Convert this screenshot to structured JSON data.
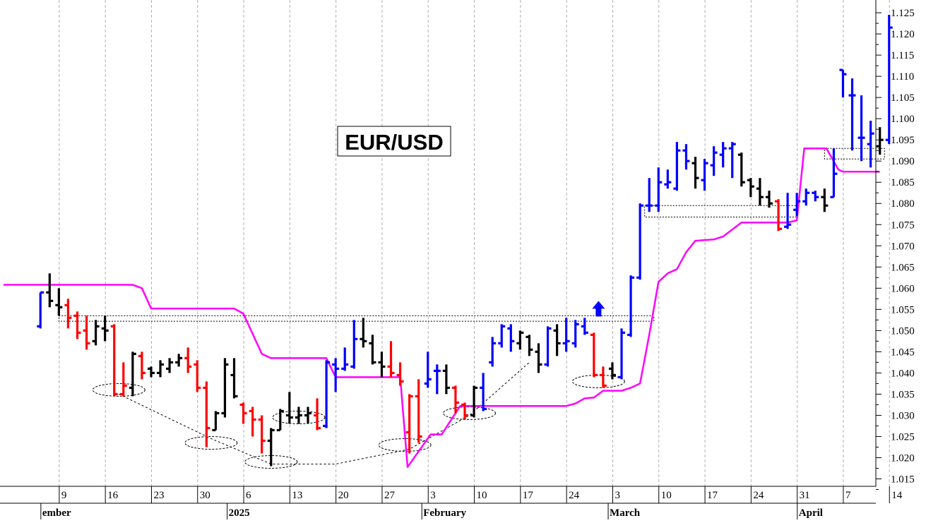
{
  "chart_data": {
    "type": "bar",
    "subtype": "ohlc-price-bars",
    "title": "EUR/USD",
    "colors": {
      "up": "#0000ff",
      "down": "#ff0000",
      "neutral": "#000000",
      "stop_line": "#ff00ff",
      "grid": "#b0b0b0",
      "breakout_arrow": "#0000ff"
    },
    "y_axis": {
      "position": "right",
      "ylim": [
        1.0125,
        1.1275
      ],
      "ticks": [
        "1.015",
        "1.020",
        "1.025",
        "1.030",
        "1.035",
        "1.040",
        "1.045",
        "1.050",
        "1.055",
        "1.060",
        "1.065",
        "1.070",
        "1.075",
        "1.080",
        "1.085",
        "1.090",
        "1.095",
        "1.100",
        "1.105",
        "1.110",
        "1.115",
        "1.120",
        "1.125"
      ]
    },
    "x_axis": {
      "day_labels": [
        {
          "label": "9",
          "x_index": 6
        },
        {
          "label": "16",
          "x_index": 11
        },
        {
          "label": "23",
          "x_index": 16
        },
        {
          "label": "30",
          "x_index": 21
        },
        {
          "label": "6",
          "x_index": 26
        },
        {
          "label": "13",
          "x_index": 31
        },
        {
          "label": "20",
          "x_index": 36
        },
        {
          "label": "27",
          "x_index": 41
        },
        {
          "label": "3",
          "x_index": 46
        },
        {
          "label": "10",
          "x_index": 51
        },
        {
          "label": "17",
          "x_index": 56
        },
        {
          "label": "24",
          "x_index": 61
        },
        {
          "label": "3",
          "x_index": 66
        },
        {
          "label": "10",
          "x_index": 71
        },
        {
          "label": "17",
          "x_index": 76
        },
        {
          "label": "24",
          "x_index": 81
        },
        {
          "label": "31",
          "x_index": 86
        },
        {
          "label": "7",
          "x_index": 91
        },
        {
          "label": "14",
          "x_index": 96
        }
      ],
      "month_labels": [
        {
          "label": "ember",
          "x_index": 4.2
        },
        {
          "label": "2025",
          "x_index": 24.4
        },
        {
          "label": "February",
          "x_index": 45.5
        },
        {
          "label": "March",
          "x_index": 65.7
        },
        {
          "label": "April",
          "x_index": 86.2
        }
      ]
    },
    "bars": [
      {
        "x": 4,
        "o": 1.051,
        "h": 1.059,
        "l": 1.0505,
        "c": 1.059,
        "color": "up"
      },
      {
        "x": 5,
        "o": 1.059,
        "h": 1.0635,
        "l": 1.0555,
        "c": 1.057,
        "color": "neutral"
      },
      {
        "x": 6,
        "o": 1.056,
        "h": 1.06,
        "l": 1.0535,
        "c": 1.0555,
        "color": "neutral"
      },
      {
        "x": 7,
        "o": 1.056,
        "h": 1.0575,
        "l": 1.0505,
        "c": 1.053,
        "color": "down"
      },
      {
        "x": 8,
        "o": 1.0535,
        "h": 1.0545,
        "l": 1.048,
        "c": 1.0495,
        "color": "down"
      },
      {
        "x": 9,
        "o": 1.05,
        "h": 1.0535,
        "l": 1.0455,
        "c": 1.047,
        "color": "down"
      },
      {
        "x": 10,
        "o": 1.0475,
        "h": 1.0525,
        "l": 1.0465,
        "c": 1.051,
        "color": "neutral"
      },
      {
        "x": 11,
        "o": 1.0505,
        "h": 1.0535,
        "l": 1.0475,
        "c": 1.05,
        "color": "neutral"
      },
      {
        "x": 12,
        "o": 1.051,
        "h": 1.0515,
        "l": 1.0345,
        "c": 1.035,
        "color": "down"
      },
      {
        "x": 13,
        "o": 1.035,
        "h": 1.0425,
        "l": 1.0345,
        "c": 1.037,
        "color": "down"
      },
      {
        "x": 14,
        "o": 1.0365,
        "h": 1.045,
        "l": 1.0345,
        "c": 1.0445,
        "color": "neutral"
      },
      {
        "x": 15,
        "o": 1.044,
        "h": 1.045,
        "l": 1.0385,
        "c": 1.04,
        "color": "down"
      },
      {
        "x": 16,
        "o": 1.041,
        "h": 1.0415,
        "l": 1.039,
        "c": 1.04,
        "color": "neutral"
      },
      {
        "x": 17,
        "o": 1.04,
        "h": 1.043,
        "l": 1.039,
        "c": 1.042,
        "color": "neutral"
      },
      {
        "x": 18,
        "o": 1.041,
        "h": 1.0435,
        "l": 1.04,
        "c": 1.0425,
        "color": "neutral"
      },
      {
        "x": 19,
        "o": 1.0425,
        "h": 1.0445,
        "l": 1.0415,
        "c": 1.0435,
        "color": "neutral"
      },
      {
        "x": 20,
        "o": 1.0435,
        "h": 1.046,
        "l": 1.04,
        "c": 1.0415,
        "color": "down"
      },
      {
        "x": 21,
        "o": 1.042,
        "h": 1.043,
        "l": 1.0355,
        "c": 1.0365,
        "color": "down"
      },
      {
        "x": 22,
        "o": 1.0365,
        "h": 1.038,
        "l": 1.0225,
        "c": 1.027,
        "color": "down"
      },
      {
        "x": 23,
        "o": 1.0265,
        "h": 1.031,
        "l": 1.0265,
        "c": 1.0305,
        "color": "neutral"
      },
      {
        "x": 24,
        "o": 1.0305,
        "h": 1.0435,
        "l": 1.0295,
        "c": 1.042,
        "color": "neutral"
      },
      {
        "x": 25,
        "o": 1.0395,
        "h": 1.0435,
        "l": 1.034,
        "c": 1.0345,
        "color": "neutral"
      },
      {
        "x": 26,
        "o": 1.0325,
        "h": 1.033,
        "l": 1.028,
        "c": 1.0305,
        "color": "down"
      },
      {
        "x": 27,
        "o": 1.031,
        "h": 1.032,
        "l": 1.025,
        "c": 1.029,
        "color": "down"
      },
      {
        "x": 28,
        "o": 1.029,
        "h": 1.03,
        "l": 1.021,
        "c": 1.024,
        "color": "down"
      },
      {
        "x": 29,
        "o": 1.024,
        "h": 1.027,
        "l": 1.018,
        "c": 1.0265,
        "color": "neutral"
      },
      {
        "x": 30,
        "o": 1.0265,
        "h": 1.0315,
        "l": 1.0265,
        "c": 1.031,
        "color": "neutral"
      },
      {
        "x": 31,
        "o": 1.03,
        "h": 1.0355,
        "l": 1.028,
        "c": 1.0295,
        "color": "neutral"
      },
      {
        "x": 32,
        "o": 1.0295,
        "h": 1.032,
        "l": 1.028,
        "c": 1.03,
        "color": "neutral"
      },
      {
        "x": 33,
        "o": 1.03,
        "h": 1.032,
        "l": 1.028,
        "c": 1.0305,
        "color": "neutral"
      },
      {
        "x": 34,
        "o": 1.03,
        "h": 1.034,
        "l": 1.0265,
        "c": 1.027,
        "color": "down"
      },
      {
        "x": 35,
        "o": 1.0275,
        "h": 1.043,
        "l": 1.027,
        "c": 1.0425,
        "color": "up"
      },
      {
        "x": 36,
        "o": 1.042,
        "h": 1.0435,
        "l": 1.0355,
        "c": 1.041,
        "color": "up"
      },
      {
        "x": 37,
        "o": 1.041,
        "h": 1.046,
        "l": 1.0405,
        "c": 1.042,
        "color": "up"
      },
      {
        "x": 38,
        "o": 1.0415,
        "h": 1.0525,
        "l": 1.041,
        "c": 1.048,
        "color": "up"
      },
      {
        "x": 39,
        "o": 1.048,
        "h": 1.053,
        "l": 1.046,
        "c": 1.0475,
        "color": "neutral"
      },
      {
        "x": 40,
        "o": 1.047,
        "h": 1.049,
        "l": 1.042,
        "c": 1.0425,
        "color": "neutral"
      },
      {
        "x": 41,
        "o": 1.0425,
        "h": 1.045,
        "l": 1.039,
        "c": 1.0415,
        "color": "neutral"
      },
      {
        "x": 42,
        "o": 1.0415,
        "h": 1.0475,
        "l": 1.039,
        "c": 1.04,
        "color": "down"
      },
      {
        "x": 43,
        "o": 1.0395,
        "h": 1.0425,
        "l": 1.037,
        "c": 1.038,
        "color": "down"
      },
      {
        "x": 44,
        "o": 1.026,
        "h": 1.035,
        "l": 1.021,
        "c": 1.0345,
        "color": "down"
      },
      {
        "x": 45,
        "o": 1.0345,
        "h": 1.0385,
        "l": 1.0235,
        "c": 1.025,
        "color": "down"
      },
      {
        "x": 46,
        "o": 1.0375,
        "h": 1.045,
        "l": 1.0365,
        "c": 1.0385,
        "color": "up"
      },
      {
        "x": 47,
        "o": 1.0405,
        "h": 1.042,
        "l": 1.035,
        "c": 1.0405,
        "color": "up"
      },
      {
        "x": 48,
        "o": 1.0405,
        "h": 1.042,
        "l": 1.035,
        "c": 1.0365,
        "color": "neutral"
      },
      {
        "x": 49,
        "o": 1.0365,
        "h": 1.037,
        "l": 1.0305,
        "c": 1.033,
        "color": "down"
      },
      {
        "x": 50,
        "o": 1.0325,
        "h": 1.033,
        "l": 1.029,
        "c": 1.03,
        "color": "down"
      },
      {
        "x": 51,
        "o": 1.03,
        "h": 1.037,
        "l": 1.0295,
        "c": 1.0365,
        "color": "neutral"
      },
      {
        "x": 52,
        "o": 1.0365,
        "h": 1.04,
        "l": 1.031,
        "c": 1.0315,
        "color": "up"
      },
      {
        "x": 53,
        "o": 1.0425,
        "h": 1.0485,
        "l": 1.0415,
        "c": 1.047,
        "color": "up"
      },
      {
        "x": 54,
        "o": 1.047,
        "h": 1.0515,
        "l": 1.046,
        "c": 1.051,
        "color": "up"
      },
      {
        "x": 55,
        "o": 1.0505,
        "h": 1.0515,
        "l": 1.045,
        "c": 1.0475,
        "color": "up"
      },
      {
        "x": 56,
        "o": 1.047,
        "h": 1.05,
        "l": 1.0455,
        "c": 1.0495,
        "color": "neutral"
      },
      {
        "x": 57,
        "o": 1.0485,
        "h": 1.049,
        "l": 1.044,
        "c": 1.0455,
        "color": "neutral"
      },
      {
        "x": 58,
        "o": 1.045,
        "h": 1.047,
        "l": 1.04,
        "c": 1.042,
        "color": "neutral"
      },
      {
        "x": 59,
        "o": 1.042,
        "h": 1.051,
        "l": 1.0415,
        "c": 1.0505,
        "color": "up"
      },
      {
        "x": 60,
        "o": 1.05,
        "h": 1.0515,
        "l": 1.044,
        "c": 1.047,
        "color": "neutral"
      },
      {
        "x": 61,
        "o": 1.047,
        "h": 1.053,
        "l": 1.045,
        "c": 1.0475,
        "color": "up"
      },
      {
        "x": 62,
        "o": 1.047,
        "h": 1.0525,
        "l": 1.046,
        "c": 1.0515,
        "color": "up"
      },
      {
        "x": 63,
        "o": 1.051,
        "h": 1.053,
        "l": 1.049,
        "c": 1.0495,
        "color": "up"
      },
      {
        "x": 64,
        "o": 1.049,
        "h": 1.0495,
        "l": 1.039,
        "c": 1.0395,
        "color": "down"
      },
      {
        "x": 65,
        "o": 1.0395,
        "h": 1.0415,
        "l": 1.0365,
        "c": 1.037,
        "color": "down"
      },
      {
        "x": 66,
        "o": 1.041,
        "h": 1.0425,
        "l": 1.0385,
        "c": 1.0395,
        "color": "neutral"
      },
      {
        "x": 67,
        "o": 1.039,
        "h": 1.0505,
        "l": 1.0385,
        "c": 1.0495,
        "color": "up"
      },
      {
        "x": 68,
        "o": 1.049,
        "h": 1.063,
        "l": 1.0485,
        "c": 1.0625,
        "color": "up"
      },
      {
        "x": 69,
        "o": 1.0625,
        "h": 1.08,
        "l": 1.062,
        "c": 1.0795,
        "color": "up"
      },
      {
        "x": 70,
        "o": 1.0795,
        "h": 1.086,
        "l": 1.078,
        "c": 1.0795,
        "color": "up"
      },
      {
        "x": 71,
        "o": 1.0795,
        "h": 1.0885,
        "l": 1.078,
        "c": 1.085,
        "color": "up"
      },
      {
        "x": 72,
        "o": 1.0845,
        "h": 1.088,
        "l": 1.0835,
        "c": 1.085,
        "color": "up"
      },
      {
        "x": 73,
        "o": 1.0835,
        "h": 1.0945,
        "l": 1.083,
        "c": 1.0925,
        "color": "up"
      },
      {
        "x": 74,
        "o": 1.0925,
        "h": 1.094,
        "l": 1.088,
        "c": 1.09,
        "color": "up"
      },
      {
        "x": 75,
        "o": 1.0895,
        "h": 1.091,
        "l": 1.0835,
        "c": 1.086,
        "color": "neutral"
      },
      {
        "x": 76,
        "o": 1.0855,
        "h": 1.0905,
        "l": 1.083,
        "c": 1.0895,
        "color": "up"
      },
      {
        "x": 77,
        "o": 1.089,
        "h": 1.0935,
        "l": 1.0865,
        "c": 1.092,
        "color": "up"
      },
      {
        "x": 78,
        "o": 1.0915,
        "h": 1.0945,
        "l": 1.0885,
        "c": 1.093,
        "color": "up"
      },
      {
        "x": 79,
        "o": 1.093,
        "h": 1.0945,
        "l": 1.086,
        "c": 1.094,
        "color": "up"
      },
      {
        "x": 80,
        "o": 1.0915,
        "h": 1.092,
        "l": 1.084,
        "c": 1.085,
        "color": "neutral"
      },
      {
        "x": 81,
        "o": 1.0855,
        "h": 1.086,
        "l": 1.0815,
        "c": 1.084,
        "color": "neutral"
      },
      {
        "x": 82,
        "o": 1.0835,
        "h": 1.086,
        "l": 1.0795,
        "c": 1.0815,
        "color": "neutral"
      },
      {
        "x": 83,
        "o": 1.0815,
        "h": 1.083,
        "l": 1.079,
        "c": 1.08,
        "color": "neutral"
      },
      {
        "x": 84,
        "o": 1.0805,
        "h": 1.081,
        "l": 1.0735,
        "c": 1.074,
        "color": "down"
      },
      {
        "x": 85,
        "o": 1.0745,
        "h": 1.0825,
        "l": 1.074,
        "c": 1.075,
        "color": "up"
      },
      {
        "x": 86,
        "o": 1.0785,
        "h": 1.0825,
        "l": 1.077,
        "c": 1.0805,
        "color": "up"
      },
      {
        "x": 87,
        "o": 1.0805,
        "h": 1.0835,
        "l": 1.0795,
        "c": 1.0825,
        "color": "up"
      },
      {
        "x": 88,
        "o": 1.0825,
        "h": 1.083,
        "l": 1.0805,
        "c": 1.0815,
        "color": "up"
      },
      {
        "x": 89,
        "o": 1.0815,
        "h": 1.0835,
        "l": 1.078,
        "c": 1.0795,
        "color": "neutral"
      },
      {
        "x": 90,
        "o": 1.0815,
        "h": 1.093,
        "l": 1.0815,
        "c": 1.087,
        "color": "up"
      },
      {
        "x": 91,
        "o": 1.1115,
        "h": 1.1115,
        "l": 1.105,
        "c": 1.1105,
        "color": "up"
      },
      {
        "x": 92,
        "o": 1.1055,
        "h": 1.1095,
        "l": 1.0925,
        "c": 1.1055,
        "color": "up"
      },
      {
        "x": 93,
        "o": 1.0955,
        "h": 1.1055,
        "l": 1.09,
        "c": 1.0955,
        "color": "up"
      },
      {
        "x": 94,
        "o": 1.094,
        "h": 1.0995,
        "l": 1.0885,
        "c": 1.0965,
        "color": "up"
      },
      {
        "x": 95,
        "o": 1.0935,
        "h": 1.098,
        "l": 1.0915,
        "c": 1.095,
        "color": "neutral"
      },
      {
        "x": 96,
        "o": 1.095,
        "h": 1.1245,
        "l": 1.094,
        "c": 1.1215,
        "color": "up"
      }
    ],
    "stop_line": [
      [
        0,
        1.0608
      ],
      [
        14,
        1.0608
      ],
      [
        15,
        1.06
      ],
      [
        16,
        1.0552
      ],
      [
        18,
        1.0552
      ],
      [
        25,
        1.0552
      ],
      [
        26,
        1.054
      ],
      [
        28,
        1.0445
      ],
      [
        29,
        1.0435
      ],
      [
        35,
        1.0435
      ],
      [
        36,
        1.039
      ],
      [
        43,
        1.039
      ],
      [
        43.8,
        1.0178
      ],
      [
        46.3,
        1.0255
      ],
      [
        47.5,
        1.0255
      ],
      [
        49.5,
        1.0322
      ],
      [
        58,
        1.0322
      ],
      [
        61,
        1.0322
      ],
      [
        62,
        1.0328
      ],
      [
        63,
        1.034
      ],
      [
        64,
        1.0342
      ],
      [
        65,
        1.0358
      ],
      [
        67,
        1.0358
      ],
      [
        68,
        1.0365
      ],
      [
        69,
        1.0375
      ],
      [
        70,
        1.049
      ],
      [
        71,
        1.0615
      ],
      [
        72,
        1.0635
      ],
      [
        73,
        1.0645
      ],
      [
        74,
        1.0685
      ],
      [
        75,
        1.0712
      ],
      [
        77,
        1.0715
      ],
      [
        78,
        1.0722
      ],
      [
        80,
        1.0755
      ],
      [
        85,
        1.0755
      ],
      [
        86,
        1.076
      ],
      [
        86.8,
        1.093
      ],
      [
        89.2,
        1.093
      ],
      [
        90.5,
        1.088
      ],
      [
        91,
        1.0875
      ],
      [
        95,
        1.0875
      ]
    ],
    "breakout_zones": [
      {
        "x_start": 6,
        "x_end": 70.5,
        "y_low": 1.0522,
        "y_high": 1.0535
      },
      {
        "x_start": 69.5,
        "x_end": 86,
        "y_low": 1.0768,
        "y_high": 1.0795
      },
      {
        "x_start": 89,
        "x_end": 95.5,
        "y_low": 1.0905,
        "y_high": 1.093
      }
    ],
    "swing_low_markers": [
      {
        "x": 12.5,
        "y": 1.036
      },
      {
        "x": 22.5,
        "y": 1.0235
      },
      {
        "x": 29,
        "y": 1.019
      },
      {
        "x": 32,
        "y": 1.0295
      },
      {
        "x": 43.5,
        "y": 1.023
      },
      {
        "x": 50.5,
        "y": 1.0305
      },
      {
        "x": 64.5,
        "y": 1.038
      }
    ],
    "trend_lines": [
      [
        [
          12.5,
          1.035
        ],
        [
          22.5,
          1.0245
        ],
        [
          29,
          1.0185
        ],
        [
          36,
          1.0185
        ],
        [
          44,
          1.022
        ],
        [
          50.5,
          1.03
        ],
        [
          57,
          1.0425
        ]
      ]
    ],
    "breakout_arrow": {
      "x": 64.5,
      "y": 1.057
    }
  }
}
